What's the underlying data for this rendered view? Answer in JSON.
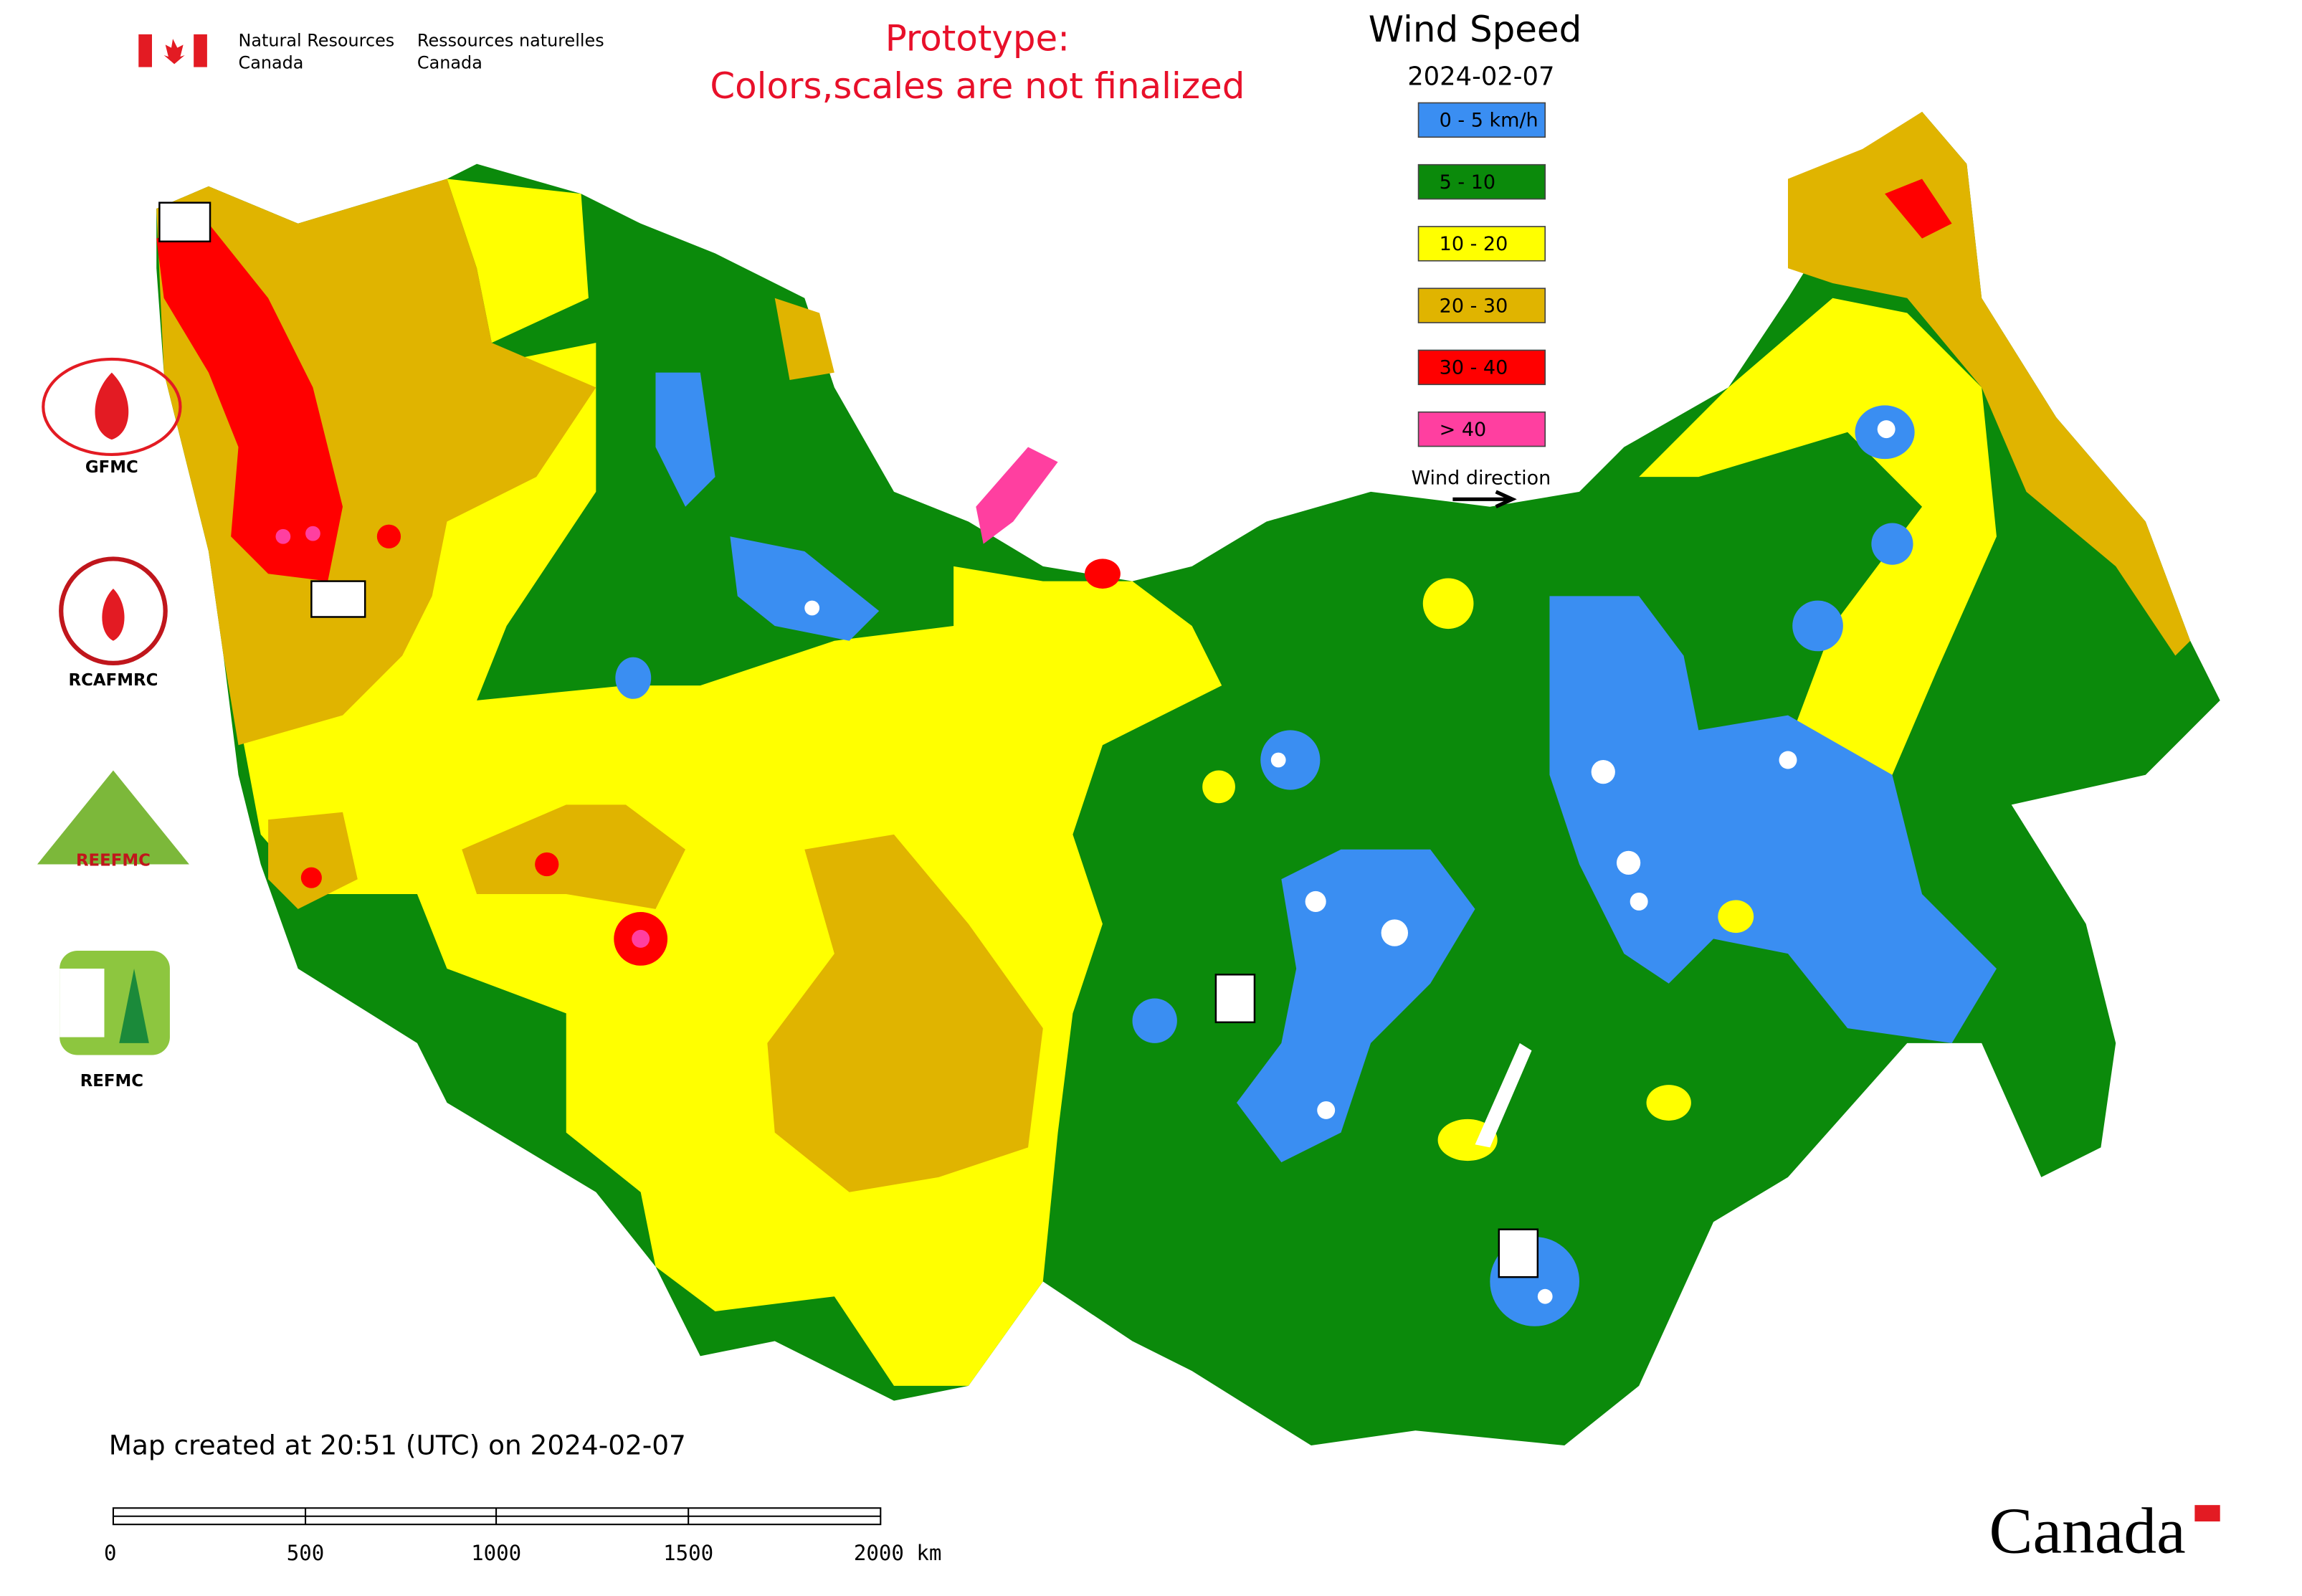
{
  "header": {
    "government_en": [
      "Natural Resources",
      "Canada"
    ],
    "government_fr": [
      "Ressources naturelles",
      "Canada"
    ],
    "notice": [
      "Prototype:",
      "Colors,scales are not finalized"
    ]
  },
  "legend": {
    "title": "Wind Speed",
    "date": "2024-02-07",
    "items": [
      {
        "label": "0 - 5 km/h",
        "color": "#3a8ef2"
      },
      {
        "label": "5 - 10",
        "color": "#0b8a0b"
      },
      {
        "label": "10 - 20",
        "color": "#ffff00"
      },
      {
        "label": "20 - 30",
        "color": "#e0b400"
      },
      {
        "label": "30 - 40",
        "color": "#ff0000"
      },
      {
        "label": "> 40",
        "color": "#ff3fa0"
      }
    ],
    "wind_direction": "Wind direction"
  },
  "logos": [
    "GFMC",
    "RCAFMRC",
    "REEFMC",
    "REFMC"
  ],
  "footer": {
    "created": "Map created at 20:51 (UTC) on 2024-02-07",
    "scale_labels": [
      "0",
      "500",
      "1000",
      "1500",
      "2000 km"
    ],
    "wordmark": "Canada"
  }
}
